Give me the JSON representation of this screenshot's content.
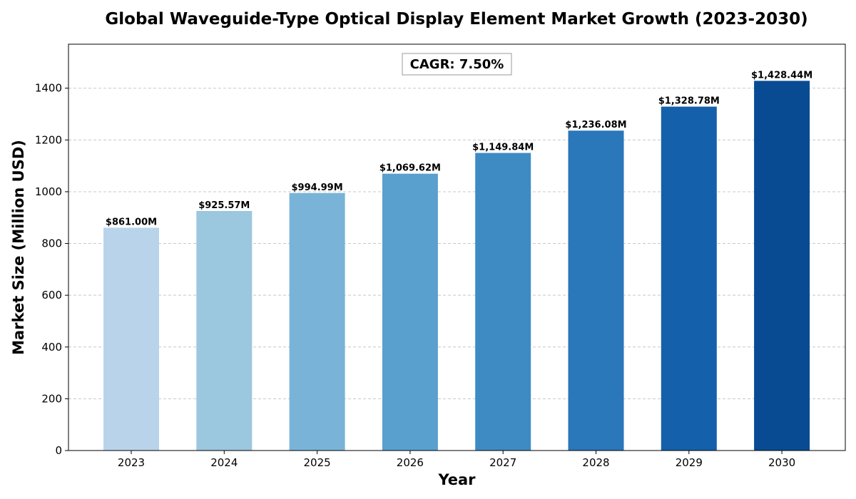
{
  "chart_data": {
    "type": "bar",
    "title": "Global Waveguide-Type Optical Display Element Market Growth (2023-2030)",
    "xlabel": "Year",
    "ylabel": "Market Size (Million USD)",
    "categories": [
      "2023",
      "2024",
      "2025",
      "2026",
      "2027",
      "2028",
      "2029",
      "2030"
    ],
    "values": [
      861.0,
      925.57,
      994.99,
      1069.62,
      1149.84,
      1236.08,
      1328.78,
      1428.44
    ],
    "data_labels": [
      "$861.00M",
      "$925.57M",
      "$994.99M",
      "$1,069.62M",
      "$1,149.84M",
      "$1,236.08M",
      "$1,328.78M",
      "$1,428.44M"
    ],
    "bar_colors": [
      "#b9d4ea",
      "#9bc7df",
      "#79b4d8",
      "#59a0ce",
      "#3e8bc4",
      "#2a77b9",
      "#1460aa",
      "#084b93"
    ],
    "ylim": [
      0,
      1570
    ],
    "yticks": [
      0,
      200,
      400,
      600,
      800,
      1000,
      1200,
      1400
    ],
    "grid": "y-dashed",
    "legend": "none",
    "annotation": "CAGR: 7.50%"
  }
}
